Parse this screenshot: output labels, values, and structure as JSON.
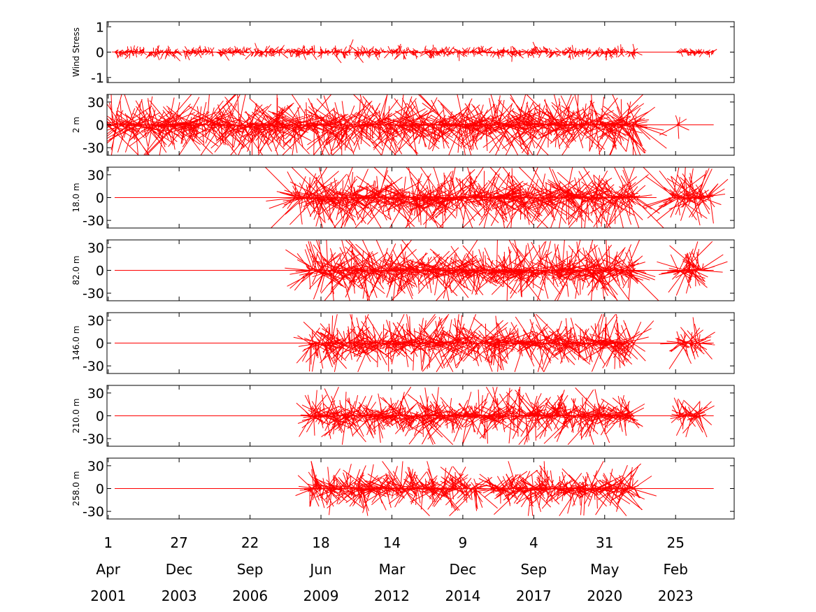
{
  "chart_data": {
    "type": "stick-plot",
    "colors": {
      "sticks": "#ff0000",
      "axes": "#000000",
      "background": "#ffffff"
    },
    "x_axis": {
      "domain": [
        "2001-03-15",
        "2025-05-31"
      ],
      "ticks": [
        {
          "date": "2001-04-01",
          "day": "1",
          "month": "Apr",
          "year": "2001"
        },
        {
          "date": "2003-12-27",
          "day": "27",
          "month": "Dec",
          "year": "2003"
        },
        {
          "date": "2006-09-22",
          "day": "22",
          "month": "Sep",
          "year": "2006"
        },
        {
          "date": "2009-06-18",
          "day": "18",
          "month": "Jun",
          "year": "2009"
        },
        {
          "date": "2012-03-14",
          "day": "14",
          "month": "Mar",
          "year": "2012"
        },
        {
          "date": "2014-12-09",
          "day": "9",
          "month": "Dec",
          "year": "2014"
        },
        {
          "date": "2017-09-04",
          "day": "4",
          "month": "Sep",
          "year": "2017"
        },
        {
          "date": "2020-05-31",
          "day": "31",
          "month": "May",
          "year": "2020"
        },
        {
          "date": "2023-02-25",
          "day": "25",
          "month": "Feb",
          "year": "2023"
        }
      ]
    },
    "panels": [
      {
        "label": "Wind Stress",
        "ylim": [
          -1.2,
          1.2
        ],
        "yticks": [
          1,
          0,
          -1
        ],
        "ytick_labels": [
          "1",
          "0",
          "-1"
        ],
        "segments": [
          {
            "start": "2001-07-01",
            "end": "2021-08-15",
            "amp": 0.22,
            "max": 0.5,
            "gaps": true
          },
          {
            "start": "2023-04-01",
            "end": "2024-08-15",
            "amp": 0.18,
            "max": 0.35,
            "gaps": false
          }
        ],
        "baseline": [
          "2001-07-01",
          "2024-08-15"
        ]
      },
      {
        "label": "2 m",
        "ylim": [
          -40,
          40
        ],
        "yticks": [
          30,
          0,
          -30
        ],
        "ytick_labels": [
          "30",
          "0",
          "-30"
        ],
        "segments": [
          {
            "start": "2001-03-15",
            "end": "2021-09-01",
            "amp": 38,
            "max": 40,
            "gaps": false
          },
          {
            "start": "2023-03-15",
            "end": "2023-04-20",
            "amp": 28,
            "max": 30,
            "gaps": false
          }
        ],
        "baseline": [
          "2001-03-15",
          "2024-08-15"
        ]
      },
      {
        "label": "18.0 m",
        "ylim": [
          -40,
          40
        ],
        "yticks": [
          30,
          0,
          -30
        ],
        "ytick_labels": [
          "30",
          "0",
          "-30"
        ],
        "segments": [
          {
            "start": "2008-06-15",
            "end": "2021-09-01",
            "amp": 38,
            "max": 40,
            "gaps": false
          },
          {
            "start": "2023-01-01",
            "end": "2024-07-01",
            "amp": 36,
            "max": 40,
            "gaps": false
          }
        ],
        "baseline": [
          "2001-07-01",
          "2022-06-01"
        ]
      },
      {
        "label": "82.0 m",
        "ylim": [
          -40,
          40
        ],
        "yticks": [
          30,
          0,
          -30
        ],
        "ytick_labels": [
          "30",
          "0",
          "-30"
        ],
        "segments": [
          {
            "start": "2009-01-01",
            "end": "2021-08-01",
            "amp": 35,
            "max": 40,
            "gaps": false
          },
          {
            "start": "2023-04-01",
            "end": "2024-03-15",
            "amp": 32,
            "max": 38,
            "gaps": false
          }
        ],
        "baseline": [
          "2001-07-01",
          "2024-08-15"
        ]
      },
      {
        "label": "146.0 m",
        "ylim": [
          -40,
          40
        ],
        "yticks": [
          30,
          0,
          -30
        ],
        "ytick_labels": [
          "30",
          "0",
          "-30"
        ],
        "segments": [
          {
            "start": "2009-01-01",
            "end": "2021-08-01",
            "amp": 30,
            "max": 38,
            "gaps": false
          },
          {
            "start": "2023-04-01",
            "end": "2024-03-01",
            "amp": 26,
            "max": 34,
            "gaps": false
          }
        ],
        "baseline": [
          "2001-07-01",
          "2024-08-15"
        ]
      },
      {
        "label": "210.0 m",
        "ylim": [
          -40,
          40
        ],
        "yticks": [
          30,
          0,
          -30
        ],
        "ytick_labels": [
          "30",
          "0",
          "-30"
        ],
        "segments": [
          {
            "start": "2009-01-01",
            "end": "2021-08-01",
            "amp": 28,
            "max": 38,
            "gaps": false
          },
          {
            "start": "2023-04-01",
            "end": "2024-03-01",
            "amp": 22,
            "max": 28,
            "gaps": false
          }
        ],
        "baseline": [
          "2001-07-01",
          "2024-08-15"
        ]
      },
      {
        "label": "258.0 m",
        "ylim": [
          -40,
          40
        ],
        "yticks": [
          30,
          0,
          -30
        ],
        "ytick_labels": [
          "30",
          "0",
          "-30"
        ],
        "segments": [
          {
            "start": "2009-01-01",
            "end": "2015-07-15",
            "amp": 26,
            "max": 36,
            "gaps": false
          },
          {
            "start": "2016-01-15",
            "end": "2021-08-01",
            "amp": 26,
            "max": 36,
            "gaps": false
          }
        ],
        "baseline": [
          "2001-07-01",
          "2024-08-15"
        ]
      }
    ]
  }
}
